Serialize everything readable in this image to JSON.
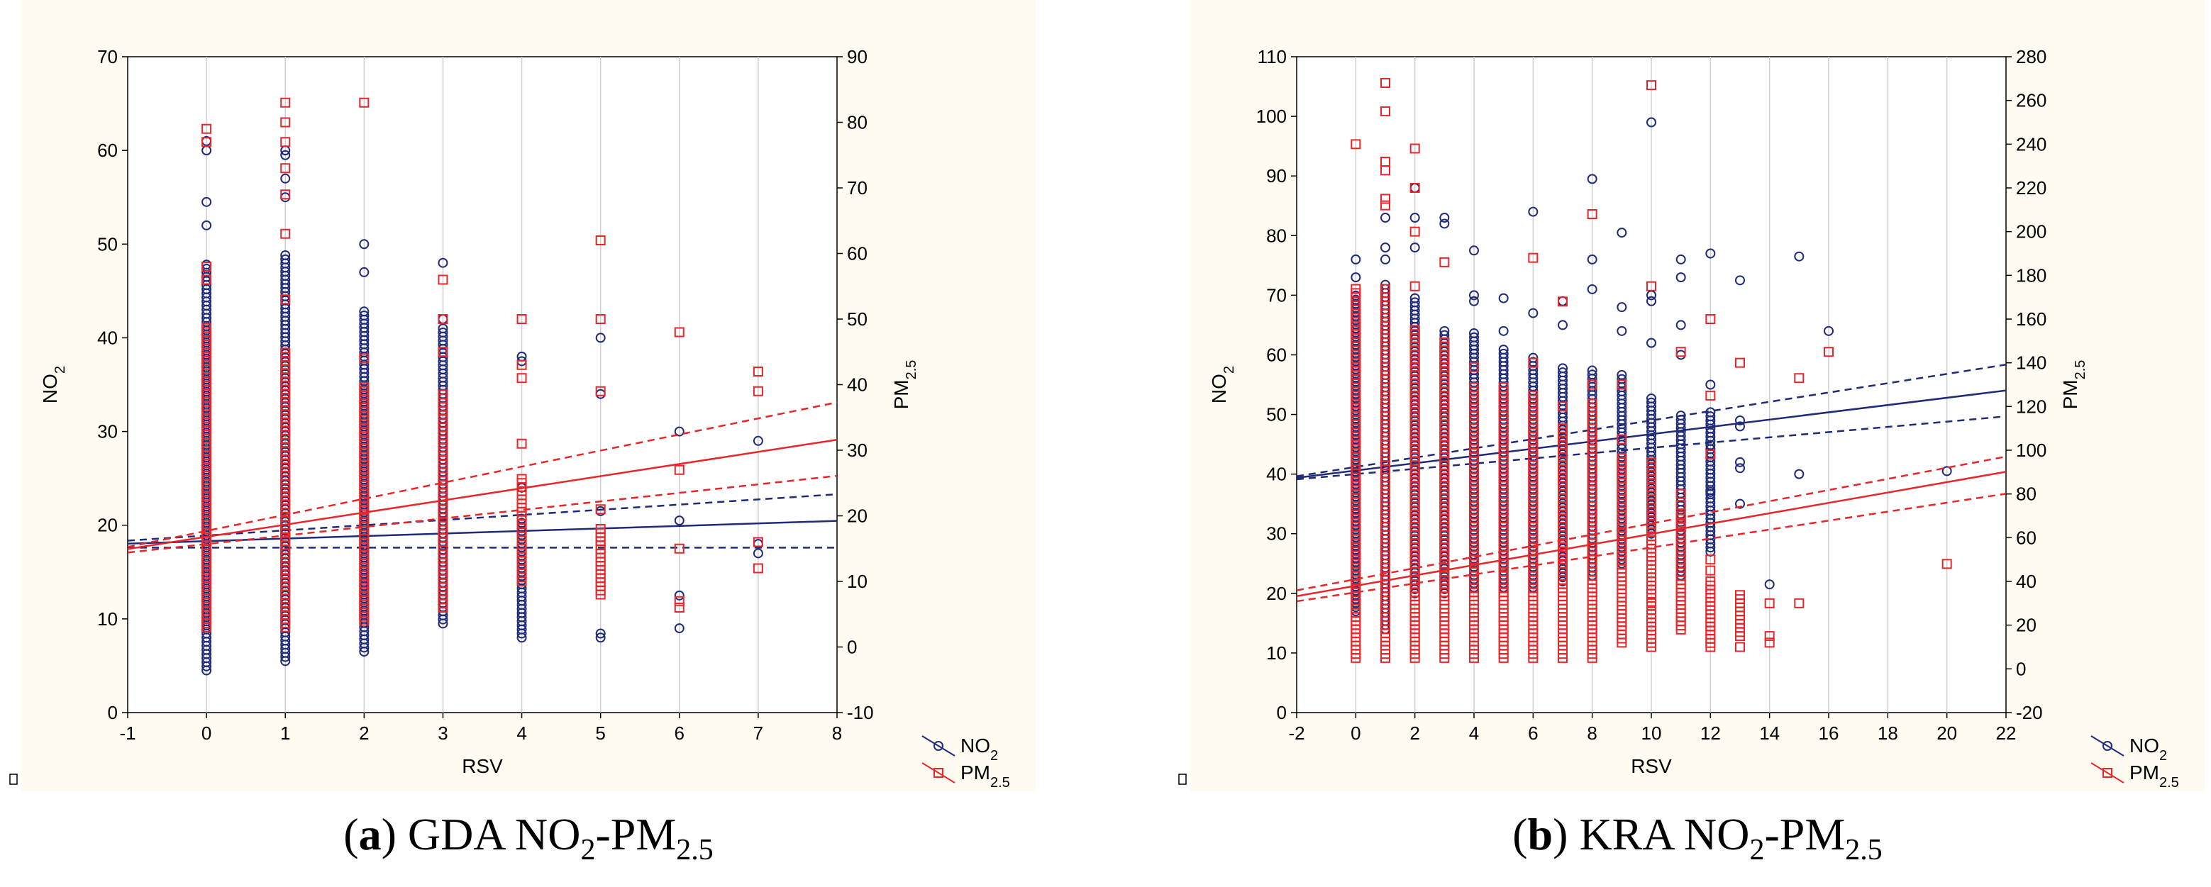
{
  "colors": {
    "no2": "#1f2a78",
    "pm25": "#e8262a",
    "background": "#fffbf0",
    "grid": "#cfcfcf"
  },
  "captions": [
    {
      "label": "a",
      "text": "GDA NO",
      "s1": "2",
      "mid": "-PM",
      "s2": "2.5"
    },
    {
      "label": "b",
      "text": "KRA NO",
      "s1": "2",
      "mid": "-PM",
      "s2": "2.5"
    }
  ],
  "chart_data": [
    {
      "type": "scatter",
      "title": "(a) GDA NO2-PM2.5",
      "xlabel": "RSV",
      "ylabel_left": "NO2",
      "ylabel_right": "PM2.5",
      "xlim": [
        -1,
        8
      ],
      "ylim_left": [
        0,
        70
      ],
      "ylim_right": [
        -10,
        90
      ],
      "xticks": [
        "-1",
        "0",
        "1",
        "2",
        "3",
        "4",
        "5",
        "6",
        "7",
        "8"
      ],
      "yticks_left": [
        "0",
        "10",
        "20",
        "30",
        "40",
        "50",
        "60",
        "70"
      ],
      "yticks_right": [
        "-10",
        "0",
        "10",
        "20",
        "30",
        "40",
        "50",
        "60",
        "70",
        "80",
        "90"
      ],
      "legend": [
        "NO2",
        "PM2.5"
      ],
      "series": [
        {
          "name": "NO2",
          "axis": "left",
          "marker": "circle",
          "points": [
            {
              "x": 0,
              "lo": 4.5,
              "hi": 48,
              "out": [
                52,
                54.5,
                60,
                61
              ]
            },
            {
              "x": 1,
              "lo": 5.5,
              "hi": 49,
              "out": [
                55,
                57,
                59.5,
                60
              ]
            },
            {
              "x": 2,
              "lo": 6.5,
              "hi": 43,
              "out": [
                47,
                50
              ]
            },
            {
              "x": 3,
              "lo": 9.5,
              "hi": 41,
              "out": [
                48,
                42
              ]
            },
            {
              "x": 4,
              "lo": 8,
              "hi": 21,
              "out": [
                24,
                37.5,
                38
              ]
            },
            {
              "x": 5,
              "lo": 8,
              "hi": 8.5,
              "out": [
                21.5,
                34,
                40
              ]
            },
            {
              "x": 6,
              "lo": 9,
              "hi": 9,
              "out": [
                12.5,
                20.5,
                30
              ]
            },
            {
              "x": 7,
              "lo": 18,
              "hi": 18,
              "out": [
                17,
                29
              ]
            }
          ],
          "fit": {
            "intercept": 18.3,
            "slope": 0.27
          },
          "ci_upper": {
            "intercept": 18.9,
            "slope": 0.55
          },
          "ci_lower": {
            "intercept": 17.6,
            "slope": 0.0
          }
        },
        {
          "name": "PM2.5",
          "axis": "right",
          "marker": "square",
          "points": [
            {
              "x": 0,
              "lo": 3,
              "hi": 49,
              "out": [
                56,
                58,
                77,
                79
              ]
            },
            {
              "x": 1,
              "lo": 3,
              "hi": 45,
              "out": [
                53,
                63,
                69,
                73,
                77,
                80,
                83
              ]
            },
            {
              "x": 2,
              "lo": 4,
              "hi": 40,
              "out": [
                44,
                83
              ]
            },
            {
              "x": 3,
              "lo": 6,
              "hi": 39,
              "out": [
                45,
                50,
                56
              ]
            },
            {
              "x": 4,
              "lo": 10,
              "hi": 26,
              "out": [
                31,
                41,
                43,
                50
              ]
            },
            {
              "x": 5,
              "lo": 8,
              "hi": 18,
              "out": [
                21,
                39,
                50,
                62
              ]
            },
            {
              "x": 6,
              "lo": 6,
              "hi": 6,
              "out": [
                7,
                15,
                27,
                48
              ]
            },
            {
              "x": 7,
              "lo": 12,
              "hi": 12,
              "out": [
                16,
                39,
                42
              ]
            }
          ],
          "fit": {
            "intercept": 16.8,
            "slope": 1.85
          },
          "ci_upper": {
            "intercept": 17.7,
            "slope": 2.45
          },
          "ci_lower": {
            "intercept": 15.7,
            "slope": 1.3
          }
        }
      ]
    },
    {
      "type": "scatter",
      "title": "(b) KRA NO2-PM2.5",
      "xlabel": "RSV",
      "ylabel_left": "NO2",
      "ylabel_right": "PM2.5",
      "xlim": [
        -2,
        22
      ],
      "ylim_left": [
        0,
        110
      ],
      "ylim_right": [
        -20,
        280
      ],
      "xticks": [
        "-2",
        "0",
        "2",
        "4",
        "6",
        "8",
        "10",
        "12",
        "14",
        "16",
        "18",
        "20",
        "22"
      ],
      "yticks_left": [
        "0",
        "10",
        "20",
        "30",
        "40",
        "50",
        "60",
        "70",
        "80",
        "90",
        "100",
        "110"
      ],
      "yticks_right": [
        "-20",
        "0",
        "20",
        "40",
        "60",
        "80",
        "100",
        "120",
        "140",
        "160",
        "180",
        "200",
        "220",
        "240",
        "260",
        "280"
      ],
      "legend": [
        "NO2",
        "PM2.5"
      ],
      "series": [
        {
          "name": "NO2",
          "axis": "left",
          "marker": "circle",
          "points": [
            {
              "x": 0,
              "lo": 17,
              "hi": 70,
              "out": [
                73,
                76
              ]
            },
            {
              "x": 1,
              "lo": 14,
              "hi": 72,
              "out": [
                76,
                78,
                83
              ]
            },
            {
              "x": 2,
              "lo": 20,
              "hi": 70,
              "out": [
                78,
                83,
                88
              ]
            },
            {
              "x": 3,
              "lo": 20,
              "hi": 64,
              "out": [
                82,
                83
              ]
            },
            {
              "x": 4,
              "lo": 21,
              "hi": 64,
              "out": [
                69,
                70,
                77.5
              ]
            },
            {
              "x": 5,
              "lo": 21,
              "hi": 61,
              "out": [
                64,
                69.5
              ]
            },
            {
              "x": 6,
              "lo": 21,
              "hi": 60,
              "out": [
                67,
                84
              ]
            },
            {
              "x": 7,
              "lo": 22,
              "hi": 58,
              "out": [
                65,
                69
              ]
            },
            {
              "x": 8,
              "lo": 23,
              "hi": 58,
              "out": [
                71,
                76,
                89.5
              ]
            },
            {
              "x": 9,
              "lo": 25,
              "hi": 57,
              "out": [
                64,
                68,
                80.5
              ]
            },
            {
              "x": 10,
              "lo": 30,
              "hi": 53,
              "out": [
                62,
                69,
                70,
                99
              ]
            },
            {
              "x": 11,
              "lo": 23,
              "hi": 50,
              "out": [
                60,
                65,
                73,
                76
              ]
            },
            {
              "x": 12,
              "lo": 27,
              "hi": 51,
              "out": [
                37,
                55,
                77
              ]
            },
            {
              "x": 13,
              "lo": 35,
              "hi": 35,
              "out": [
                41,
                42,
                48,
                49,
                72.5
              ]
            },
            {
              "x": 14,
              "lo": 21.5,
              "hi": 21.5,
              "out": []
            },
            {
              "x": 15,
              "lo": 40,
              "hi": 40,
              "out": [
                76.5
              ]
            },
            {
              "x": 16,
              "lo": 64,
              "hi": 64,
              "out": []
            },
            {
              "x": 20,
              "lo": 40.5,
              "hi": 40.5,
              "out": []
            }
          ],
          "fit": {
            "intercept": 40.6,
            "slope": 0.61
          },
          "ci_upper": {
            "intercept": 41.2,
            "slope": 0.78
          },
          "ci_lower": {
            "intercept": 40.0,
            "slope": 0.44
          }
        },
        {
          "name": "PM2.5",
          "axis": "right",
          "marker": "square",
          "points": [
            {
              "x": 0,
              "lo": 5,
              "hi": 175,
              "out": [
                240
              ]
            },
            {
              "x": 1,
              "lo": 5,
              "hi": 175,
              "out": [
                212,
                215,
                228,
                232,
                255,
                268
              ]
            },
            {
              "x": 2,
              "lo": 5,
              "hi": 155,
              "out": [
                175,
                200,
                220,
                238
              ]
            },
            {
              "x": 3,
              "lo": 5,
              "hi": 150,
              "out": [
                186
              ]
            },
            {
              "x": 4,
              "lo": 5,
              "hi": 130,
              "out": [
                138
              ]
            },
            {
              "x": 5,
              "lo": 5,
              "hi": 130,
              "out": []
            },
            {
              "x": 6,
              "lo": 5,
              "hi": 125,
              "out": [
                140,
                188
              ]
            },
            {
              "x": 7,
              "lo": 5,
              "hi": 110,
              "out": [
                120,
                168
              ]
            },
            {
              "x": 8,
              "lo": 5,
              "hi": 122,
              "out": [
                130,
                208
              ]
            },
            {
              "x": 9,
              "lo": 12,
              "hi": 98,
              "out": [
                105,
                130
              ]
            },
            {
              "x": 10,
              "lo": 10,
              "hi": 95,
              "out": [
                25,
                30,
                175,
                267
              ]
            },
            {
              "x": 11,
              "lo": 18,
              "hi": 70,
              "out": [
                70,
                75,
                80,
                145
              ]
            },
            {
              "x": 12,
              "lo": 10,
              "hi": 40,
              "out": [
                45,
                50,
                98,
                125,
                160
              ]
            },
            {
              "x": 13,
              "lo": 15,
              "hi": 35,
              "out": [
                10,
                30,
                140
              ]
            },
            {
              "x": 14,
              "lo": 12,
              "hi": 12,
              "out": [
                15,
                30
              ]
            },
            {
              "x": 15,
              "lo": 30,
              "hi": 30,
              "out": [
                133
              ]
            },
            {
              "x": 16,
              "lo": 145,
              "hi": 145,
              "out": []
            },
            {
              "x": 20,
              "lo": 48,
              "hi": 48,
              "out": []
            }
          ],
          "fit": {
            "intercept": 38,
            "slope": 2.37
          },
          "ci_upper": {
            "intercept": 41,
            "slope": 2.55
          },
          "ci_lower": {
            "intercept": 35,
            "slope": 2.05
          }
        }
      ]
    }
  ]
}
